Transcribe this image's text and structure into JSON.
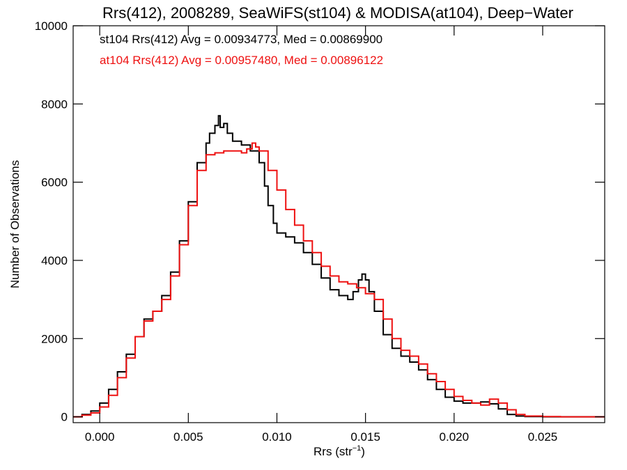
{
  "chart_data": {
    "type": "line",
    "title": "Rrs(412), 2008289, SeaWiFS(st104) & MODISA(at104), Deep−Water",
    "xlabel": "Rrs (str",
    "xlabel_sup": "−1",
    "xlabel_close": ")",
    "ylabel": "Number of Observations",
    "xlim": [
      -0.0015,
      0.0285
    ],
    "ylim": [
      -150,
      10000
    ],
    "x_ticks": [
      0.0,
      0.005,
      0.01,
      0.015,
      0.02,
      0.025
    ],
    "x_tick_labels": [
      "0.000",
      "0.005",
      "0.010",
      "0.015",
      "0.020",
      "0.025"
    ],
    "y_ticks": [
      0,
      2000,
      4000,
      6000,
      8000,
      10000
    ],
    "y_tick_labels": [
      "0",
      "2000",
      "4000",
      "6000",
      "8000",
      "10000"
    ],
    "annotations": [
      {
        "text": "st104 Rrs(412) Avg = 0.00934773, Med = 0.00869900",
        "color": "#000000"
      },
      {
        "text": "at104 Rrs(412) Avg = 0.00957480, Med = 0.00896122",
        "color": "#ee1111"
      }
    ],
    "series": [
      {
        "color": "#000000",
        "x": [
          -0.0015,
          -0.001,
          -0.0005,
          0.0,
          0.0005,
          0.001,
          0.0015,
          0.002,
          0.0025,
          0.003,
          0.0035,
          0.004,
          0.0045,
          0.005,
          0.0055,
          0.006,
          0.0062,
          0.0065,
          0.0067,
          0.0068,
          0.007,
          0.0072,
          0.0075,
          0.008,
          0.0085,
          0.009,
          0.0093,
          0.0095,
          0.0098,
          0.01,
          0.0105,
          0.011,
          0.0115,
          0.012,
          0.0125,
          0.013,
          0.0135,
          0.014,
          0.0143,
          0.0146,
          0.0148,
          0.015,
          0.0152,
          0.0155,
          0.016,
          0.0165,
          0.017,
          0.0175,
          0.018,
          0.0185,
          0.019,
          0.0195,
          0.02,
          0.0205,
          0.021,
          0.0215,
          0.022,
          0.0225,
          0.023,
          0.0235,
          0.024,
          0.025,
          0.026,
          0.0285
        ],
        "y": [
          0,
          60,
          150,
          350,
          700,
          1150,
          1600,
          2050,
          2500,
          2700,
          3100,
          3700,
          4500,
          5500,
          6500,
          7000,
          7250,
          7450,
          7700,
          7400,
          7500,
          7250,
          7050,
          6950,
          6800,
          6500,
          5900,
          5400,
          4950,
          4700,
          4600,
          4450,
          4200,
          3900,
          3550,
          3250,
          3100,
          3000,
          3200,
          3500,
          3650,
          3500,
          3200,
          2700,
          2100,
          1750,
          1550,
          1400,
          1200,
          950,
          700,
          500,
          400,
          350,
          350,
          380,
          330,
          200,
          60,
          20,
          5,
          0,
          0,
          0
        ]
      },
      {
        "color": "#ee1111",
        "x": [
          -0.0015,
          -0.001,
          -0.0005,
          0.0,
          0.0005,
          0.001,
          0.0015,
          0.002,
          0.0025,
          0.003,
          0.0035,
          0.004,
          0.0045,
          0.005,
          0.0055,
          0.006,
          0.0065,
          0.007,
          0.0075,
          0.008,
          0.0083,
          0.0086,
          0.0088,
          0.009,
          0.0095,
          0.01,
          0.0105,
          0.011,
          0.0115,
          0.012,
          0.0125,
          0.013,
          0.0135,
          0.014,
          0.0145,
          0.015,
          0.0155,
          0.016,
          0.0165,
          0.017,
          0.0175,
          0.018,
          0.0185,
          0.019,
          0.0195,
          0.02,
          0.0205,
          0.021,
          0.0215,
          0.022,
          0.0225,
          0.023,
          0.0235,
          0.024,
          0.025,
          0.026,
          0.0285
        ],
        "y": [
          0,
          40,
          100,
          250,
          550,
          1000,
          1500,
          2050,
          2450,
          2700,
          3000,
          3600,
          4400,
          5400,
          6300,
          6700,
          6750,
          6800,
          6800,
          6750,
          6850,
          7000,
          6900,
          6800,
          6300,
          5800,
          5300,
          4900,
          4500,
          4200,
          3850,
          3600,
          3450,
          3400,
          3300,
          3150,
          3000,
          2500,
          2000,
          1700,
          1550,
          1350,
          1100,
          900,
          700,
          520,
          420,
          350,
          300,
          450,
          350,
          180,
          60,
          20,
          5,
          0,
          0
        ]
      }
    ]
  }
}
